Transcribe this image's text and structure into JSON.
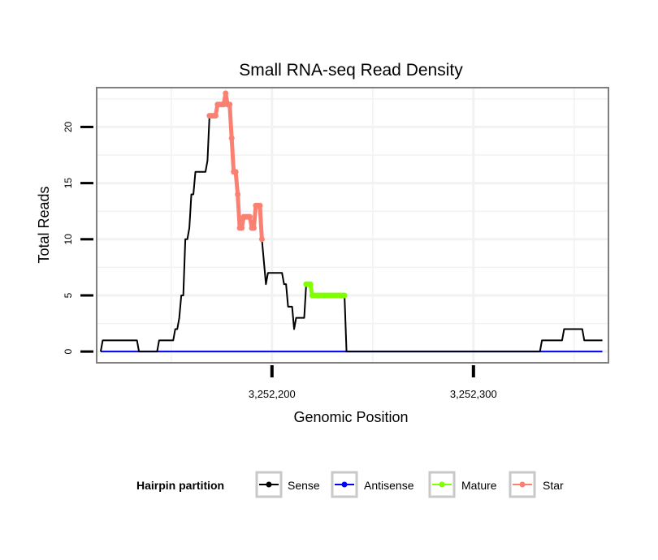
{
  "chart_data": {
    "type": "line",
    "title": "Small RNA-seq Read Density",
    "xlabel": "Genomic Position",
    "ylabel": "Total Reads",
    "xlim": [
      3252113,
      3252367
    ],
    "ylim": [
      -1,
      23.5
    ],
    "x_ticks": [
      {
        "value": 3252200,
        "label": "3,252,200"
      },
      {
        "value": 3252300,
        "label": "3,252,300"
      }
    ],
    "y_ticks": [
      {
        "value": 0,
        "label": "0"
      },
      {
        "value": 5,
        "label": "5"
      },
      {
        "value": 10,
        "label": "10"
      },
      {
        "value": 15,
        "label": "15"
      },
      {
        "value": 20,
        "label": "20"
      }
    ],
    "legend": {
      "title": "Hairpin partition",
      "position": "bottom",
      "entries": [
        {
          "name": "Sense",
          "color": "#000000"
        },
        {
          "name": "Antisense",
          "color": "#0000ff"
        },
        {
          "name": "Mature",
          "color": "#7fff00"
        },
        {
          "name": "Star",
          "color": "#fa8072"
        }
      ]
    },
    "series": [
      {
        "name": "Sense",
        "color": "#000000",
        "points": [
          [
            3252115,
            0
          ],
          [
            3252116,
            1
          ],
          [
            3252133,
            1
          ],
          [
            3252134,
            0
          ],
          [
            3252143,
            0
          ],
          [
            3252144,
            1
          ],
          [
            3252151,
            1
          ],
          [
            3252152,
            2
          ],
          [
            3252153,
            2
          ],
          [
            3252154,
            3
          ],
          [
            3252155,
            5
          ],
          [
            3252156,
            5
          ],
          [
            3252157,
            10
          ],
          [
            3252158,
            10
          ],
          [
            3252159,
            11
          ],
          [
            3252160,
            14
          ],
          [
            3252161,
            14
          ],
          [
            3252162,
            16
          ],
          [
            3252167,
            16
          ],
          [
            3252168,
            17
          ],
          [
            3252169,
            21
          ],
          [
            3252170,
            21
          ],
          [
            3252171,
            21
          ],
          [
            3252172,
            21
          ],
          [
            3252173,
            22
          ],
          [
            3252176,
            22
          ],
          [
            3252177,
            23
          ],
          [
            3252178,
            22
          ],
          [
            3252179,
            22
          ],
          [
            3252180,
            19
          ],
          [
            3252181,
            16
          ],
          [
            3252182,
            16
          ],
          [
            3252183,
            14
          ],
          [
            3252184,
            11
          ],
          [
            3252185,
            11
          ],
          [
            3252186,
            12
          ],
          [
            3252189,
            12
          ],
          [
            3252190,
            11
          ],
          [
            3252191,
            11
          ],
          [
            3252192,
            13
          ],
          [
            3252194,
            13
          ],
          [
            3252195,
            10
          ],
          [
            3252196,
            8
          ],
          [
            3252197,
            6
          ],
          [
            3252198,
            7
          ],
          [
            3252205,
            7
          ],
          [
            3252206,
            6
          ],
          [
            3252207,
            6
          ],
          [
            3252208,
            4
          ],
          [
            3252210,
            4
          ],
          [
            3252211,
            2
          ],
          [
            3252212,
            3
          ],
          [
            3252216,
            3
          ],
          [
            3252217,
            6
          ],
          [
            3252219,
            6
          ],
          [
            3252220,
            5
          ],
          [
            3252236,
            5
          ],
          [
            3252237,
            0
          ],
          [
            3252333,
            0
          ],
          [
            3252334,
            1
          ],
          [
            3252344,
            1
          ],
          [
            3252345,
            2
          ],
          [
            3252354,
            2
          ],
          [
            3252355,
            1
          ],
          [
            3252364,
            1
          ]
        ]
      },
      {
        "name": "Antisense",
        "color": "#0000ff",
        "points": [
          [
            3252115,
            0
          ],
          [
            3252364,
            0
          ]
        ]
      },
      {
        "name": "Mature",
        "color": "#7fff00",
        "points": [
          [
            3252217,
            6
          ],
          [
            3252218,
            6
          ],
          [
            3252219,
            6
          ],
          [
            3252220,
            5
          ],
          [
            3252221,
            5
          ],
          [
            3252222,
            5
          ],
          [
            3252223,
            5
          ],
          [
            3252224,
            5
          ],
          [
            3252225,
            5
          ],
          [
            3252226,
            5
          ],
          [
            3252227,
            5
          ],
          [
            3252228,
            5
          ],
          [
            3252229,
            5
          ],
          [
            3252230,
            5
          ],
          [
            3252231,
            5
          ],
          [
            3252232,
            5
          ],
          [
            3252233,
            5
          ],
          [
            3252234,
            5
          ],
          [
            3252235,
            5
          ],
          [
            3252236,
            5
          ]
        ]
      },
      {
        "name": "Star",
        "color": "#fa8072",
        "points": [
          [
            3252169,
            21
          ],
          [
            3252170,
            21
          ],
          [
            3252171,
            21
          ],
          [
            3252172,
            21
          ],
          [
            3252173,
            22
          ],
          [
            3252174,
            22
          ],
          [
            3252175,
            22
          ],
          [
            3252176,
            22
          ],
          [
            3252177,
            23
          ],
          [
            3252178,
            22
          ],
          [
            3252179,
            22
          ],
          [
            3252180,
            19
          ],
          [
            3252181,
            16
          ],
          [
            3252182,
            16
          ],
          [
            3252183,
            14
          ],
          [
            3252184,
            11
          ],
          [
            3252185,
            11
          ],
          [
            3252186,
            12
          ],
          [
            3252187,
            12
          ],
          [
            3252188,
            12
          ],
          [
            3252189,
            12
          ],
          [
            3252190,
            11
          ],
          [
            3252191,
            11
          ],
          [
            3252192,
            13
          ],
          [
            3252193,
            13
          ],
          [
            3252194,
            13
          ],
          [
            3252195,
            10
          ]
        ]
      }
    ]
  }
}
